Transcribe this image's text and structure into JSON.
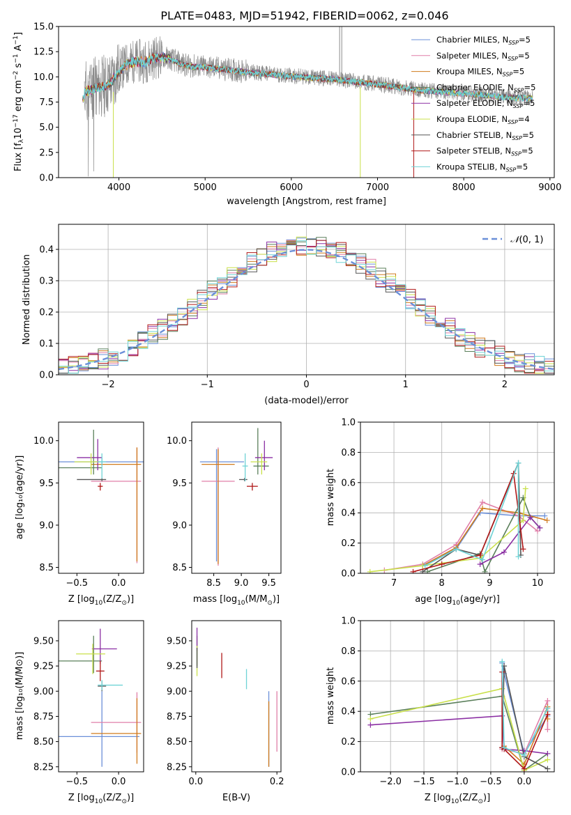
{
  "colors": [
    "#6a8fd8",
    "#e07fa8",
    "#d07a1c",
    "#5a7f5a",
    "#8b2fa3",
    "#c9e04a",
    "#555555",
    "#b01818",
    "#6fd3d6"
  ],
  "chart_data": [
    {
      "type": "line",
      "title": "PLATE=0483, MJD=51942, FIBERID=0062, z=0.046",
      "xlabel": "wavelength [Angstrom, rest frame]",
      "ylabel": "Flux [fλ10⁻¹⁷ erg cm⁻² s⁻¹ A⁻¹]",
      "xlim": [
        3300,
        9050
      ],
      "ylim": [
        0,
        15
      ],
      "xticks": [
        4000,
        5000,
        6000,
        7000,
        8000,
        9000
      ],
      "yticks": [
        0.0,
        2.5,
        5.0,
        7.5,
        10.0,
        12.5,
        15.0
      ],
      "grid": false,
      "legend_loc": "upper-right",
      "legend": [
        {
          "base": "Chabrier MILES, N",
          "sub": "SSP",
          "tail": "=5"
        },
        {
          "base": "Salpeter MILES, N",
          "sub": "SSP",
          "tail": "=5"
        },
        {
          "base": "Kroupa MILES, N",
          "sub": "SSP",
          "tail": "=5"
        },
        {
          "base": "Chabrier ELODIE, N",
          "sub": "SSP",
          "tail": "=5"
        },
        {
          "base": "Salpeter ELODIE, N",
          "sub": "SSP",
          "tail": "=5"
        },
        {
          "base": "Kroupa ELODIE, N",
          "sub": "SSP",
          "tail": "=4"
        },
        {
          "base": "Chabrier STELIB, N",
          "sub": "SSP",
          "tail": "=5"
        },
        {
          "base": "Salpeter STELIB, N",
          "sub": "SSP",
          "tail": "=5"
        },
        {
          "base": "Kroupa STELIB, N",
          "sub": "SSP",
          "tail": "=5"
        }
      ],
      "continuum": [
        [
          3600,
          8.6
        ],
        [
          3700,
          8.8
        ],
        [
          3800,
          9.0
        ],
        [
          3900,
          9.4
        ],
        [
          4000,
          10.6
        ],
        [
          4100,
          11.3
        ],
        [
          4200,
          11.6
        ],
        [
          4300,
          11.5
        ],
        [
          4400,
          11.9
        ],
        [
          4500,
          12.0
        ],
        [
          4600,
          11.8
        ],
        [
          4700,
          11.4
        ],
        [
          4800,
          11.1
        ],
        [
          5000,
          11.0
        ],
        [
          5200,
          10.8
        ],
        [
          5500,
          10.5
        ],
        [
          6000,
          10.1
        ],
        [
          6500,
          9.8
        ],
        [
          7000,
          9.3
        ],
        [
          7500,
          8.7
        ],
        [
          8000,
          8.4
        ],
        [
          8500,
          8.0
        ],
        [
          8800,
          7.9
        ]
      ]
    },
    {
      "type": "step-histogram",
      "xlabel": "(data-model)/error",
      "ylabel": "Normed distribution",
      "xlim": [
        -2.5,
        2.5
      ],
      "ylim": [
        0,
        0.48
      ],
      "xticks": [
        -2,
        -1,
        0,
        1,
        2
      ],
      "yticks": [
        0.0,
        0.1,
        0.2,
        0.3,
        0.4
      ],
      "bin_width": 0.1,
      "grid": true,
      "legend_loc": "upper-right",
      "reference_curve": {
        "label_sym": "𝒩",
        "label_rest": "(0, 1)",
        "mean": 0,
        "sigma": 1
      }
    },
    {
      "type": "scatter-errorbar",
      "xlabel_base": "Z [log",
      "xlabel_sub": "10",
      "xlabel_rest": "(Z/Z",
      "ylabel": "age  [log₁₀(age/yr)]",
      "xlim": [
        -0.72,
        0.3
      ],
      "ylim": [
        8.43,
        10.22
      ],
      "xticks": [
        -0.5,
        0.0
      ],
      "yticks": [
        8.5,
        9.0,
        9.5,
        10.0
      ],
      "points": [
        {
          "x": -0.2,
          "y": 9.75,
          "xerr": [
            0.55,
            0.5
          ],
          "yerr": [
            0.05,
            0.05
          ]
        },
        {
          "x": 0.22,
          "y": 9.52,
          "xerr": [
            0.55,
            0.05
          ],
          "yerr": [
            0.97,
            0.4
          ]
        },
        {
          "x": 0.22,
          "y": 9.72,
          "xerr": [
            0.55,
            0.05
          ],
          "yerr": [
            1.15,
            0.2
          ]
        },
        {
          "x": -0.3,
          "y": 9.68,
          "xerr": [
            0.42,
            0.1
          ],
          "yerr": [
            0.08,
            0.45
          ]
        },
        {
          "x": -0.25,
          "y": 9.8,
          "xerr": [
            0.25,
            0.05
          ],
          "yerr": [
            0.15,
            0.22
          ]
        },
        {
          "x": -0.33,
          "y": 9.75,
          "xerr": [
            0.2,
            0.1
          ],
          "yerr": [
            0.15,
            0.1
          ]
        },
        {
          "x": -0.2,
          "y": 9.54,
          "xerr": [
            0.3,
            0.05
          ],
          "yerr": [
            0.02,
            0.02
          ]
        },
        {
          "x": -0.22,
          "y": 9.46,
          "xerr": [
            0.03,
            0.03
          ],
          "yerr": [
            0.05,
            0.04
          ]
        },
        {
          "x": -0.2,
          "y": 9.75,
          "xerr": [
            0.05,
            0.05
          ],
          "yerr": [
            0.2,
            0.1
          ]
        }
      ]
    },
    {
      "type": "scatter-errorbar",
      "xlabel_base": "mass [log",
      "xlabel_sub": "10",
      "xlabel_rest": "(M/M",
      "ylabel": "",
      "xlim": [
        8.1,
        9.72
      ],
      "ylim": [
        8.43,
        10.22
      ],
      "xticks": [
        8.0,
        8.5,
        9.0,
        9.5
      ],
      "yticks": [
        8.5,
        9.0,
        9.5,
        10.0
      ],
      "points": [
        {
          "x": 8.55,
          "y": 9.75,
          "xerr": [
            0.3,
            0.5
          ],
          "yerr": [
            1.18,
            0.15
          ]
        },
        {
          "x": 8.58,
          "y": 9.52,
          "xerr": [
            0.3,
            0.3
          ],
          "yerr": [
            1.0,
            0.4
          ]
        },
        {
          "x": 8.58,
          "y": 9.72,
          "xerr": [
            0.3,
            0.3
          ],
          "yerr": [
            1.18,
            0.18
          ]
        },
        {
          "x": 9.3,
          "y": 9.7,
          "xerr": [
            0.08,
            0.2
          ],
          "yerr": [
            0.1,
            0.45
          ]
        },
        {
          "x": 9.42,
          "y": 9.8,
          "xerr": [
            0.17,
            0.15
          ],
          "yerr": [
            0.15,
            0.2
          ]
        },
        {
          "x": 9.37,
          "y": 9.75,
          "xerr": [
            0.2,
            0.1
          ],
          "yerr": [
            0.15,
            0.1
          ]
        },
        {
          "x": 9.06,
          "y": 9.54,
          "xerr": [
            0.1,
            0.05
          ],
          "yerr": [
            0.02,
            0.02
          ]
        },
        {
          "x": 9.2,
          "y": 9.46,
          "xerr": [
            0.1,
            0.1
          ],
          "yerr": [
            0.05,
            0.04
          ]
        },
        {
          "x": 9.07,
          "y": 9.7,
          "xerr": [
            0.05,
            0.05
          ],
          "yerr": [
            0.18,
            0.15
          ]
        }
      ]
    },
    {
      "type": "line",
      "xlabel_base": "age  [log",
      "xlabel_sub": "10",
      "xlabel_rest": "(age/yr)]",
      "ylabel": "mass weight",
      "xlim": [
        6.3,
        10.35
      ],
      "ylim": [
        0,
        1.0
      ],
      "xticks": [
        7,
        8,
        9,
        10
      ],
      "yticks": [
        0.0,
        0.2,
        0.4,
        0.6,
        0.8,
        1.0
      ],
      "grid": true,
      "series": [
        {
          "x": [
            7.6,
            8.3,
            8.8,
            9.6,
            10.15
          ],
          "y": [
            0.05,
            0.16,
            0.4,
            0.38,
            0.38
          ]
        },
        {
          "x": [
            6.8,
            7.6,
            8.3,
            8.85,
            9.6,
            10.0
          ],
          "y": [
            0.02,
            0.06,
            0.19,
            0.47,
            0.38,
            0.28
          ]
        },
        {
          "x": [
            7.6,
            8.3,
            8.85,
            9.6,
            10.2
          ],
          "y": [
            0.05,
            0.17,
            0.43,
            0.4,
            0.35
          ]
        },
        {
          "x": [
            7.7,
            8.8,
            8.9,
            9.7,
            9.85,
            10.05
          ],
          "y": [
            0.01,
            0.13,
            0.01,
            0.5,
            0.37,
            0.3
          ]
        },
        {
          "x": [
            8.8,
            9.3,
            9.85,
            10.05
          ],
          "y": [
            0.06,
            0.14,
            0.37,
            0.3
          ]
        },
        {
          "x": [
            6.5,
            7.6,
            8.8,
            9.7,
            9.75
          ],
          "y": [
            0.01,
            0.05,
            0.1,
            0.35,
            0.56
          ]
        },
        {
          "x": [
            7.6,
            8.3,
            8.8,
            9.6,
            9.65
          ],
          "y": [
            0.01,
            0.16,
            0.12,
            0.73,
            0.12
          ]
        },
        {
          "x": [
            7.4,
            8.0,
            8.8,
            9.5,
            9.7
          ],
          "y": [
            0.01,
            0.06,
            0.12,
            0.66,
            0.16
          ]
        },
        {
          "x": [
            7.65,
            8.3,
            8.85,
            9.6,
            9.6
          ],
          "y": [
            0.05,
            0.16,
            0.09,
            0.73,
            0.11
          ]
        }
      ]
    },
    {
      "type": "scatter-errorbar",
      "xlabel_base": "Z [log",
      "xlabel_sub": "10",
      "xlabel_rest": "(Z/Z",
      "ylabel": "mass [log₁₀(M/M⊙)]",
      "xlim": [
        -0.72,
        0.3
      ],
      "ylim": [
        8.2,
        9.7
      ],
      "xticks": [
        -0.5,
        0.0
      ],
      "yticks": [
        8.25,
        8.5,
        8.75,
        9.0,
        9.25,
        9.5
      ],
      "points": [
        {
          "x": -0.2,
          "y": 8.55,
          "xerr": [
            0.55,
            0.45
          ],
          "yerr": [
            0.3,
            0.45
          ]
        },
        {
          "x": 0.22,
          "y": 8.69,
          "xerr": [
            0.55,
            0.05
          ],
          "yerr": [
            0.3,
            0.3
          ]
        },
        {
          "x": 0.22,
          "y": 8.58,
          "xerr": [
            0.55,
            0.05
          ],
          "yerr": [
            0.3,
            0.35
          ]
        },
        {
          "x": -0.3,
          "y": 9.3,
          "xerr": [
            0.42,
            0.1
          ],
          "yerr": [
            0.12,
            0.25
          ]
        },
        {
          "x": -0.22,
          "y": 9.42,
          "xerr": [
            0.1,
            0.2
          ],
          "yerr": [
            0.15,
            0.2
          ]
        },
        {
          "x": -0.31,
          "y": 9.37,
          "xerr": [
            0.2,
            0.15
          ],
          "yerr": [
            0.2,
            0.1
          ]
        },
        {
          "x": -0.2,
          "y": 9.05,
          "xerr": [
            0.05,
            0.05
          ],
          "yerr": [
            0.05,
            0.05
          ]
        },
        {
          "x": -0.22,
          "y": 9.2,
          "xerr": [
            0.05,
            0.05
          ],
          "yerr": [
            0.1,
            0.1
          ]
        },
        {
          "x": -0.2,
          "y": 9.06,
          "xerr": [
            0.05,
            0.25
          ],
          "yerr": [
            0.05,
            0.05
          ]
        }
      ]
    },
    {
      "type": "scatter-errorbar",
      "xlabel": "E(B-V)",
      "ylabel": "",
      "xlim": [
        -0.01,
        0.21
      ],
      "ylim": [
        8.2,
        9.7
      ],
      "xticks": [
        0.0,
        0.2
      ],
      "yticks": [
        8.25,
        8.5,
        8.75,
        9.0,
        9.25,
        9.5
      ],
      "points": [
        {
          "x": 0.18,
          "y": 8.9,
          "xerr": [
            0,
            0
          ],
          "yerr": [
            0.65,
            0.1
          ]
        },
        {
          "x": 0.2,
          "y": 8.7,
          "xerr": [
            0,
            0
          ],
          "yerr": [
            0.3,
            0.3
          ]
        },
        {
          "x": 0.18,
          "y": 8.6,
          "xerr": [
            0,
            0
          ],
          "yerr": [
            0.35,
            0.3
          ]
        },
        {
          "x": 0.003,
          "y": 9.35,
          "xerr": [
            0,
            0
          ],
          "yerr": [
            0.1,
            0.2
          ]
        },
        {
          "x": 0.003,
          "y": 9.5,
          "xerr": [
            0,
            0
          ],
          "yerr": [
            0.1,
            0.13
          ]
        },
        {
          "x": 0.003,
          "y": 9.3,
          "xerr": [
            0,
            0
          ],
          "yerr": [
            0.15,
            0.15
          ]
        },
        {
          "x": 0.003,
          "y": 9.33,
          "xerr": [
            0,
            0
          ],
          "yerr": [
            0.1,
            0.1
          ]
        },
        {
          "x": 0.064,
          "y": 9.25,
          "xerr": [
            0,
            0
          ],
          "yerr": [
            0.12,
            0.13
          ]
        },
        {
          "x": 0.125,
          "y": 9.12,
          "xerr": [
            0,
            0
          ],
          "yerr": [
            0.1,
            0.1
          ]
        }
      ]
    },
    {
      "type": "line",
      "xlabel_base": "Z [log",
      "xlabel_sub": "10",
      "xlabel_rest": "(Z/Z",
      "ylabel": "mass weight",
      "xlim": [
        -2.45,
        0.45
      ],
      "ylim": [
        0,
        1.0
      ],
      "xticks": [
        -2.0,
        -1.5,
        -1.0,
        -0.5,
        0.0
      ],
      "yticks": [
        0.0,
        0.2,
        0.4,
        0.6,
        0.8,
        1.0
      ],
      "grid": true,
      "series": [
        {
          "x": [
            -0.33,
            -0.3,
            0.0,
            0.35,
            0.35
          ],
          "y": [
            0.72,
            0.65,
            0.12,
            0.37,
            0.4
          ]
        },
        {
          "x": [
            -0.33,
            0.0,
            0.35,
            0.35
          ],
          "y": [
            0.15,
            0.12,
            0.47,
            0.28
          ]
        },
        {
          "x": [
            -0.3,
            0.0,
            0.35,
            0.35
          ],
          "y": [
            0.17,
            0.05,
            0.43,
            0.35
          ]
        },
        {
          "x": [
            -2.3,
            -0.33,
            0.0,
            0.35
          ],
          "y": [
            0.38,
            0.5,
            0.01,
            0.12
          ]
        },
        {
          "x": [
            -2.3,
            -0.33,
            -0.3,
            0.0,
            0.35
          ],
          "y": [
            0.31,
            0.37,
            0.15,
            0.14,
            0.12
          ]
        },
        {
          "x": [
            -2.3,
            -0.33,
            0.0,
            0.35
          ],
          "y": [
            0.35,
            0.55,
            0.01,
            0.08
          ]
        },
        {
          "x": [
            -0.33,
            -0.3,
            0.0,
            0.35
          ],
          "y": [
            0.16,
            0.7,
            0.1,
            0.02
          ]
        },
        {
          "x": [
            -0.33,
            -0.33,
            -0.3,
            0.0,
            0.35
          ],
          "y": [
            0.66,
            0.16,
            0.15,
            0.02,
            0.38
          ]
        },
        {
          "x": [
            -0.33,
            -0.3,
            0.0,
            0.35
          ],
          "y": [
            0.73,
            0.16,
            0.11,
            0.42
          ]
        }
      ]
    }
  ]
}
